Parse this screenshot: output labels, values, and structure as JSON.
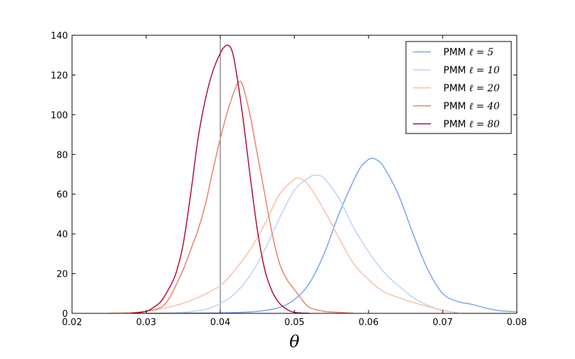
{
  "chart_data": {
    "type": "line",
    "title": "",
    "xlabel": "θ",
    "ylabel": "",
    "xlim": [
      0.02,
      0.08
    ],
    "ylim": [
      0,
      140
    ],
    "xticks": [
      0.02,
      0.03,
      0.04,
      0.05,
      0.06,
      0.07,
      0.08
    ],
    "xtick_labels": [
      "0.02",
      "0.03",
      "0.04",
      "0.05",
      "0.06",
      "0.07",
      "0.08"
    ],
    "yticks": [
      0,
      20,
      40,
      60,
      80,
      100,
      120,
      140
    ],
    "ytick_labels": [
      "0",
      "20",
      "40",
      "60",
      "80",
      "100",
      "120",
      "140"
    ],
    "grid": false,
    "legend_position": "top-right",
    "reference_line": {
      "x": 0.04,
      "color": "#555555"
    },
    "series": [
      {
        "name": "PMM ℓ = 5",
        "legend_text": "PMM",
        "legend_math": "ℓ = 5",
        "color": "#7aa2f2",
        "x": [
          0.03,
          0.04,
          0.045,
          0.048,
          0.05,
          0.052,
          0.054,
          0.056,
          0.058,
          0.059,
          0.06,
          0.0605,
          0.061,
          0.062,
          0.064,
          0.066,
          0.068,
          0.07,
          0.072,
          0.074,
          0.076,
          0.078,
          0.08
        ],
        "y": [
          0,
          0.2,
          1,
          3,
          7,
          15,
          30,
          50,
          67,
          74,
          77.5,
          78,
          77.5,
          74,
          60,
          40,
          22,
          10,
          6,
          4.5,
          2.5,
          1.2,
          0.8
        ]
      },
      {
        "name": "PMM ℓ = 10",
        "legend_text": "PMM",
        "legend_math": "ℓ = 10",
        "color": "#bcd3f3",
        "x": [
          0.03,
          0.035,
          0.038,
          0.04,
          0.042,
          0.044,
          0.046,
          0.048,
          0.05,
          0.052,
          0.053,
          0.054,
          0.056,
          0.058,
          0.06,
          0.062,
          0.064,
          0.066,
          0.068,
          0.07,
          0.072
        ],
        "y": [
          0,
          0.5,
          2,
          5,
          10,
          19,
          32,
          48,
          62,
          68.5,
          69.5,
          68,
          58,
          43,
          31,
          21,
          14,
          8,
          4,
          1.5,
          0.3
        ]
      },
      {
        "name": "PMM ℓ = 20",
        "legend_text": "PMM",
        "legend_math": "ℓ = 20",
        "color": "#f4c0a5",
        "x": [
          0.025,
          0.03,
          0.034,
          0.037,
          0.04,
          0.042,
          0.044,
          0.046,
          0.048,
          0.05,
          0.0505,
          0.051,
          0.052,
          0.054,
          0.056,
          0.058,
          0.06,
          0.062,
          0.064,
          0.066,
          0.068,
          0.07,
          0.072
        ],
        "y": [
          0,
          1,
          4,
          8,
          14,
          22,
          32,
          45,
          60,
          67.5,
          68,
          67.5,
          64,
          52,
          38,
          25,
          17,
          11,
          8,
          5.5,
          3.5,
          1.5,
          0.3
        ]
      },
      {
        "name": "PMM ℓ = 40",
        "legend_text": "PMM",
        "legend_math": "ℓ = 40",
        "color": "#e8826a",
        "x": [
          0.028,
          0.03,
          0.032,
          0.033,
          0.034,
          0.035,
          0.036,
          0.037,
          0.038,
          0.039,
          0.04,
          0.041,
          0.042,
          0.0425,
          0.043,
          0.044,
          0.045,
          0.046,
          0.047,
          0.048,
          0.049,
          0.05,
          0.051,
          0.052,
          0.054,
          0.056,
          0.058
        ],
        "y": [
          0,
          1,
          3,
          7,
          14,
          22,
          32,
          42,
          55,
          72,
          88,
          102,
          113,
          116.5,
          115,
          100,
          80,
          60,
          40,
          25,
          17,
          12,
          7,
          3,
          1,
          0.5,
          0
        ]
      },
      {
        "name": "PMM ℓ = 80",
        "legend_text": "PMM",
        "legend_math": "ℓ = 80",
        "color": "#b40b31",
        "x": [
          0.028,
          0.03,
          0.031,
          0.032,
          0.033,
          0.034,
          0.035,
          0.036,
          0.037,
          0.038,
          0.039,
          0.04,
          0.0405,
          0.041,
          0.0415,
          0.042,
          0.043,
          0.044,
          0.045,
          0.046,
          0.047,
          0.048,
          0.049,
          0.05,
          0.052
        ],
        "y": [
          0,
          1,
          3,
          6,
          12,
          20,
          35,
          60,
          88,
          108,
          122,
          131,
          134,
          135,
          133,
          125,
          100,
          70,
          42,
          22,
          11,
          5,
          2,
          0.5,
          0
        ]
      }
    ]
  }
}
